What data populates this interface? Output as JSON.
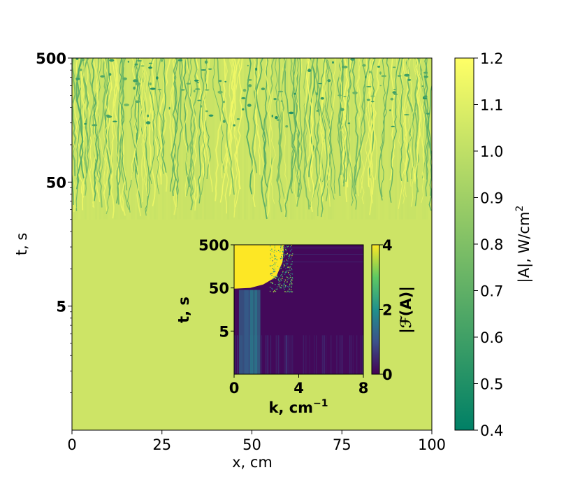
{
  "chart_data": [
    {
      "type": "heatmap",
      "xlabel": "x, cm",
      "ylabel": "t, s",
      "x_ticks": [
        "0",
        "25",
        "50",
        "75",
        "100"
      ],
      "x_tick_values": [
        0,
        25,
        50,
        75,
        100
      ],
      "xlim": [
        0,
        100
      ],
      "y_ticks": [
        "5",
        "50",
        "500"
      ],
      "y_tick_values": [
        5,
        50,
        500
      ],
      "y_scale": "log",
      "ylim": [
        0.5,
        500
      ],
      "colorbar": {
        "label": "|A|, W/cm",
        "label_superscript": "2",
        "range": [
          0.4,
          1.2
        ],
        "ticks": [
          "0.4",
          "0.5",
          "0.6",
          "0.7",
          "0.8",
          "0.9",
          "1.0",
          "1.1",
          "1.2"
        ],
        "tick_values": [
          0.4,
          0.5,
          0.6,
          0.7,
          0.8,
          0.9,
          1.0,
          1.1,
          1.2
        ],
        "colormap": "summer"
      },
      "field": {
        "uniform_value": 1.03,
        "pattern_onset_t": 25,
        "pattern_full_t": 60
      }
    },
    {
      "type": "heatmap",
      "xlabel": "k, cm",
      "xlabel_superscript": "−1",
      "ylabel": "t, s",
      "x_ticks": [
        "0",
        "4",
        "8"
      ],
      "x_tick_values": [
        0,
        4,
        8
      ],
      "xlim": [
        0,
        8
      ],
      "y_ticks": [
        "5",
        "50",
        "500"
      ],
      "y_tick_values": [
        5,
        50,
        500
      ],
      "y_scale": "log",
      "ylim": [
        0.5,
        500
      ],
      "colorbar": {
        "label": "|ℱ(A)|",
        "range": [
          0,
          4
        ],
        "ticks": [
          "0",
          "2",
          "4"
        ],
        "tick_values": [
          0,
          2,
          4
        ],
        "colormap": "viridis"
      }
    }
  ],
  "colors": {
    "summer_low": "#008066",
    "summer_high": "#ffff66",
    "viridis_low": "#440154",
    "viridis_high": "#fde725"
  }
}
